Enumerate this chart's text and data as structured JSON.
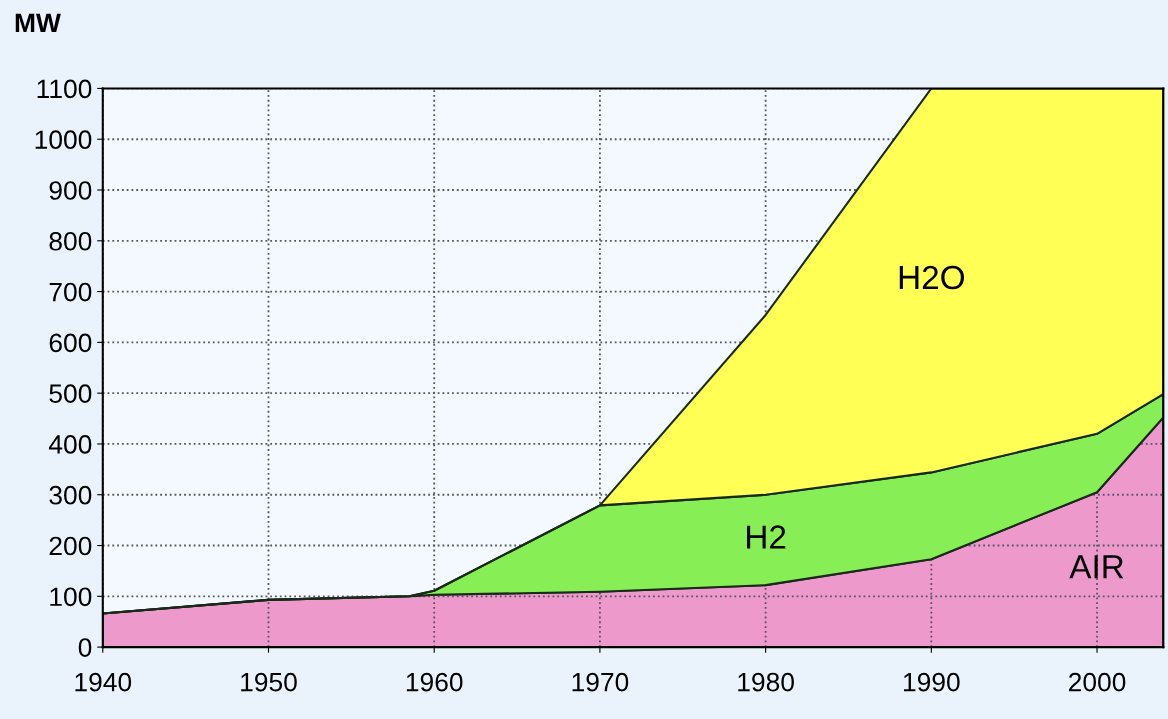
{
  "chart_data": {
    "type": "area",
    "stacked": true,
    "ylabel": "MW",
    "x": [
      1940,
      1950,
      1958.5,
      1960,
      1970,
      1980,
      1990,
      2000,
      2004
    ],
    "series": [
      {
        "name": "AIR",
        "color": "#ee99cc",
        "values": [
          66,
          93,
          100,
          103,
          109,
          122,
          173,
          305,
          452
        ]
      },
      {
        "name": "H2",
        "color": "#88ee55",
        "values": [
          0,
          0,
          0,
          8,
          170,
          178,
          171,
          115,
          46
        ]
      },
      {
        "name": "H2O",
        "color": "#ffff55",
        "values": [
          0,
          0,
          0,
          0,
          0,
          354,
          756,
          680,
          602
        ]
      }
    ],
    "xlim": [
      1940,
      2004
    ],
    "xticks": [
      1940,
      1950,
      1960,
      1970,
      1980,
      1990,
      2000
    ],
    "ylim": [
      0,
      1100
    ],
    "yticks": [
      0,
      100,
      200,
      300,
      400,
      500,
      600,
      700,
      800,
      900,
      1000,
      1100
    ],
    "grid": true,
    "legend": false
  }
}
